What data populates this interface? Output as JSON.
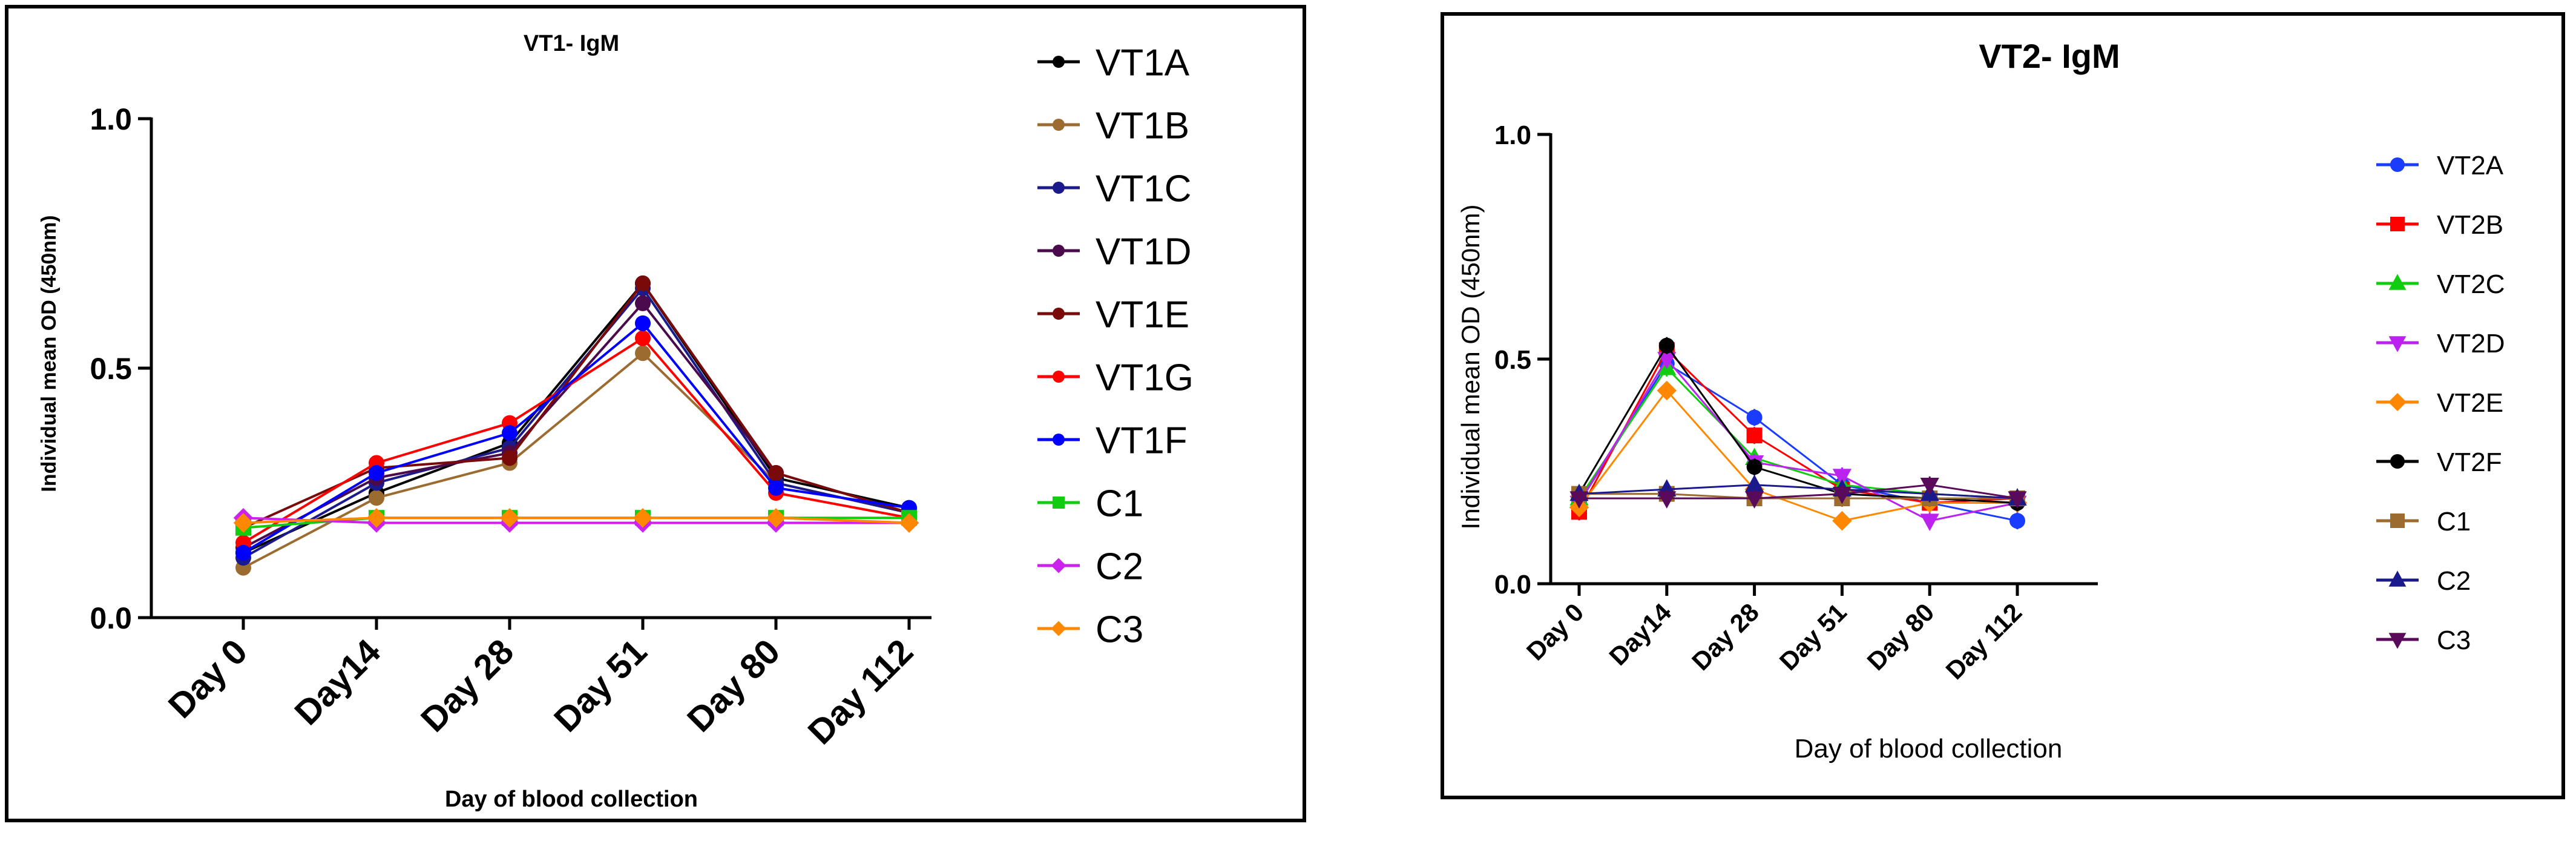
{
  "chart_data": [
    {
      "type": "line",
      "title": "VT1- IgM",
      "xlabel": "Day of blood collection",
      "ylabel": "Individual mean OD (450nm)",
      "ylim": [
        0,
        1
      ],
      "yticks": [
        "0.0",
        "0.5",
        "1.0"
      ],
      "categories": [
        "Day 0",
        "Day14",
        "Day 28",
        "Day 51",
        "Day 80",
        "Day 112"
      ],
      "legend_position": "right",
      "grid": false,
      "series": [
        {
          "name": "VT1A",
          "color": "#000000",
          "marker": "circle",
          "values": [
            0.13,
            0.25,
            0.35,
            0.67,
            0.28,
            0.22
          ]
        },
        {
          "name": "VT1B",
          "color": "#9c6b30",
          "marker": "circle",
          "values": [
            0.1,
            0.24,
            0.31,
            0.53,
            0.27,
            0.21
          ]
        },
        {
          "name": "VT1C",
          "color": "#1a1a8c",
          "marker": "circle",
          "values": [
            0.12,
            0.27,
            0.34,
            0.66,
            0.27,
            0.21
          ]
        },
        {
          "name": "VT1D",
          "color": "#4b0a4b",
          "marker": "circle",
          "values": [
            0.14,
            0.28,
            0.33,
            0.63,
            0.29,
            0.21
          ]
        },
        {
          "name": "VT1E",
          "color": "#7a0a0a",
          "marker": "circle",
          "values": [
            0.18,
            0.3,
            0.32,
            0.67,
            0.29,
            0.21
          ]
        },
        {
          "name": "VT1G",
          "color": "#ff0000",
          "marker": "circle",
          "values": [
            0.15,
            0.31,
            0.39,
            0.56,
            0.25,
            0.2
          ]
        },
        {
          "name": "VT1F",
          "color": "#0000ff",
          "marker": "circle",
          "values": [
            0.13,
            0.29,
            0.37,
            0.59,
            0.26,
            0.22
          ]
        },
        {
          "name": "C1",
          "color": "#11cc11",
          "marker": "square",
          "values": [
            0.18,
            0.2,
            0.2,
            0.2,
            0.2,
            0.2
          ]
        },
        {
          "name": "C2",
          "color": "#cc22ee",
          "marker": "diamond",
          "values": [
            0.2,
            0.19,
            0.19,
            0.19,
            0.19,
            0.19
          ]
        },
        {
          "name": "C3",
          "color": "#ff8800",
          "marker": "diamond",
          "values": [
            0.19,
            0.2,
            0.2,
            0.2,
            0.2,
            0.19
          ]
        }
      ]
    },
    {
      "type": "line",
      "title": "VT2- IgM",
      "xlabel": "Day of blood collection",
      "ylabel": "Individual mean OD (450nm)",
      "ylim": [
        0,
        1
      ],
      "yticks": [
        "0.0",
        "0.5",
        "1.0"
      ],
      "categories": [
        "Day 0",
        "Day14",
        "Day 28",
        "Day 51",
        "Day 80",
        "Day 112"
      ],
      "legend_position": "right",
      "grid": false,
      "series": [
        {
          "name": "VT2A",
          "color": "#1a3cff",
          "marker": "circle",
          "values": [
            0.18,
            0.49,
            0.37,
            0.22,
            0.18,
            0.14
          ]
        },
        {
          "name": "VT2B",
          "color": "#ff0000",
          "marker": "square",
          "values": [
            0.16,
            0.52,
            0.33,
            0.21,
            0.18,
            0.19
          ]
        },
        {
          "name": "VT2C",
          "color": "#11cc11",
          "marker": "triangle-up",
          "values": [
            0.19,
            0.48,
            0.28,
            0.22,
            0.2,
            0.19
          ]
        },
        {
          "name": "VT2D",
          "color": "#bb22ee",
          "marker": "triangle-down",
          "values": [
            0.18,
            0.5,
            0.27,
            0.24,
            0.14,
            0.18
          ]
        },
        {
          "name": "VT2E",
          "color": "#ff8800",
          "marker": "diamond",
          "values": [
            0.17,
            0.43,
            0.21,
            0.14,
            0.18,
            0.18
          ]
        },
        {
          "name": "VT2F",
          "color": "#000000",
          "marker": "circle",
          "values": [
            0.2,
            0.53,
            0.26,
            0.2,
            0.19,
            0.18
          ]
        },
        {
          "name": "C1",
          "color": "#9c6b30",
          "marker": "square",
          "values": [
            0.2,
            0.2,
            0.19,
            0.19,
            0.19,
            0.19
          ]
        },
        {
          "name": "C2",
          "color": "#1a1a8c",
          "marker": "triangle-up",
          "values": [
            0.2,
            0.21,
            0.22,
            0.21,
            0.2,
            0.19
          ]
        },
        {
          "name": "C3",
          "color": "#5a0a5a",
          "marker": "triangle-down",
          "values": [
            0.19,
            0.19,
            0.19,
            0.2,
            0.22,
            0.19
          ]
        }
      ]
    }
  ]
}
